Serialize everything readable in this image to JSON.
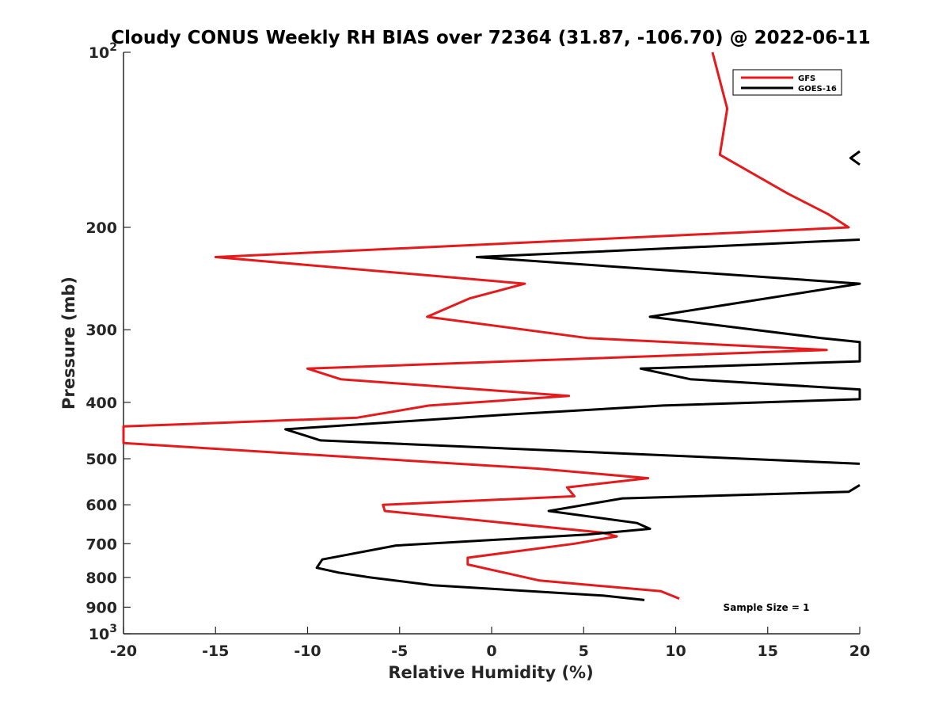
{
  "chart_data": {
    "type": "line",
    "title": "Cloudy CONUS Weekly RH BIAS over 72364 (31.87, -106.70) @ 2022-06-11",
    "xlabel": "Relative Humidity (%)",
    "ylabel": "Pressure (mb)",
    "xlim": [
      -20,
      20
    ],
    "ylim": [
      100,
      1000
    ],
    "y_scale": "log",
    "y_reversed": true,
    "grid": false,
    "legend_position": "top-right",
    "x_ticks": [
      "-20",
      "-15",
      "-10",
      "-5",
      "0",
      "5",
      "10",
      "15",
      "20"
    ],
    "y_ticks": [
      {
        "value": 100,
        "base": "10",
        "exp": "2"
      },
      {
        "value": 200,
        "base": "200",
        "exp": ""
      },
      {
        "value": 300,
        "base": "300",
        "exp": ""
      },
      {
        "value": 400,
        "base": "400",
        "exp": ""
      },
      {
        "value": 500,
        "base": "500",
        "exp": ""
      },
      {
        "value": 600,
        "base": "600",
        "exp": ""
      },
      {
        "value": 700,
        "base": "700",
        "exp": ""
      },
      {
        "value": 800,
        "base": "800",
        "exp": ""
      },
      {
        "value": 900,
        "base": "900",
        "exp": ""
      },
      {
        "value": 1000,
        "base": "10",
        "exp": "3"
      }
    ],
    "series": [
      {
        "name": "GFS",
        "color": "#e41a1c",
        "points": [
          {
            "x": 12.0,
            "y": 100
          },
          {
            "x": 12.8,
            "y": 125
          },
          {
            "x": 12.4,
            "y": 150
          },
          {
            "x": 16.1,
            "y": 175
          },
          {
            "x": 18.3,
            "y": 190
          },
          {
            "x": 19.4,
            "y": 200
          },
          {
            "x": -15.0,
            "y": 225
          },
          {
            "x": 1.8,
            "y": 250
          },
          {
            "x": -1.2,
            "y": 265
          },
          {
            "x": -3.5,
            "y": 285
          },
          {
            "x": 5.2,
            "y": 310
          },
          {
            "x": 18.2,
            "y": 325
          },
          {
            "x": -10.0,
            "y": 350
          },
          {
            "x": -8.2,
            "y": 365
          },
          {
            "x": 4.2,
            "y": 390
          },
          {
            "x": -3.4,
            "y": 405
          },
          {
            "x": -7.3,
            "y": 425
          },
          {
            "x": -20.0,
            "y": 440
          },
          {
            "x": -20.0,
            "y": 470
          },
          {
            "x": 2.5,
            "y": 520
          },
          {
            "x": 8.5,
            "y": 540
          },
          {
            "x": 4.1,
            "y": 560
          },
          {
            "x": 4.5,
            "y": 580
          },
          {
            "x": -5.9,
            "y": 600
          },
          {
            "x": -5.8,
            "y": 615
          },
          {
            "x": 6.0,
            "y": 670
          },
          {
            "x": 6.8,
            "y": 680
          },
          {
            "x": 4.5,
            "y": 700
          },
          {
            "x": -1.3,
            "y": 740
          },
          {
            "x": -1.3,
            "y": 760
          },
          {
            "x": 2.6,
            "y": 810
          },
          {
            "x": 9.2,
            "y": 845
          },
          {
            "x": 10.2,
            "y": 870
          }
        ]
      },
      {
        "name": "GOES-16",
        "color": "#000000",
        "points": [
          {
            "x": 20.0,
            "y": 148
          },
          {
            "x": 19.5,
            "y": 152
          },
          {
            "x": 20.0,
            "y": 156
          },
          {
            "x": null,
            "y": null
          },
          {
            "x": 20.0,
            "y": 210
          },
          {
            "x": -0.8,
            "y": 225
          },
          {
            "x": 20.0,
            "y": 250
          },
          {
            "x": 8.6,
            "y": 285
          },
          {
            "x": 17.9,
            "y": 310
          },
          {
            "x": 20.0,
            "y": 315
          },
          {
            "x": 20.0,
            "y": 340
          },
          {
            "x": 8.1,
            "y": 350
          },
          {
            "x": 10.8,
            "y": 365
          },
          {
            "x": 20.0,
            "y": 380
          },
          {
            "x": 20.0,
            "y": 395
          },
          {
            "x": 9.3,
            "y": 405
          },
          {
            "x": 0.7,
            "y": 420
          },
          {
            "x": -11.2,
            "y": 445
          },
          {
            "x": -9.3,
            "y": 465
          },
          {
            "x": 20.0,
            "y": 510
          },
          {
            "x": null,
            "y": null
          },
          {
            "x": 20.0,
            "y": 555
          },
          {
            "x": 19.4,
            "y": 570
          },
          {
            "x": 7.1,
            "y": 585
          },
          {
            "x": 3.1,
            "y": 615
          },
          {
            "x": 7.9,
            "y": 645
          },
          {
            "x": 8.6,
            "y": 660
          },
          {
            "x": 5.2,
            "y": 675
          },
          {
            "x": -5.2,
            "y": 705
          },
          {
            "x": -9.2,
            "y": 745
          },
          {
            "x": -9.5,
            "y": 770
          },
          {
            "x": -8.3,
            "y": 785
          },
          {
            "x": -6.6,
            "y": 800
          },
          {
            "x": -3.2,
            "y": 825
          },
          {
            "x": 6.1,
            "y": 860
          },
          {
            "x": 8.3,
            "y": 875
          }
        ]
      }
    ],
    "annotation": "Sample Size = 1"
  }
}
